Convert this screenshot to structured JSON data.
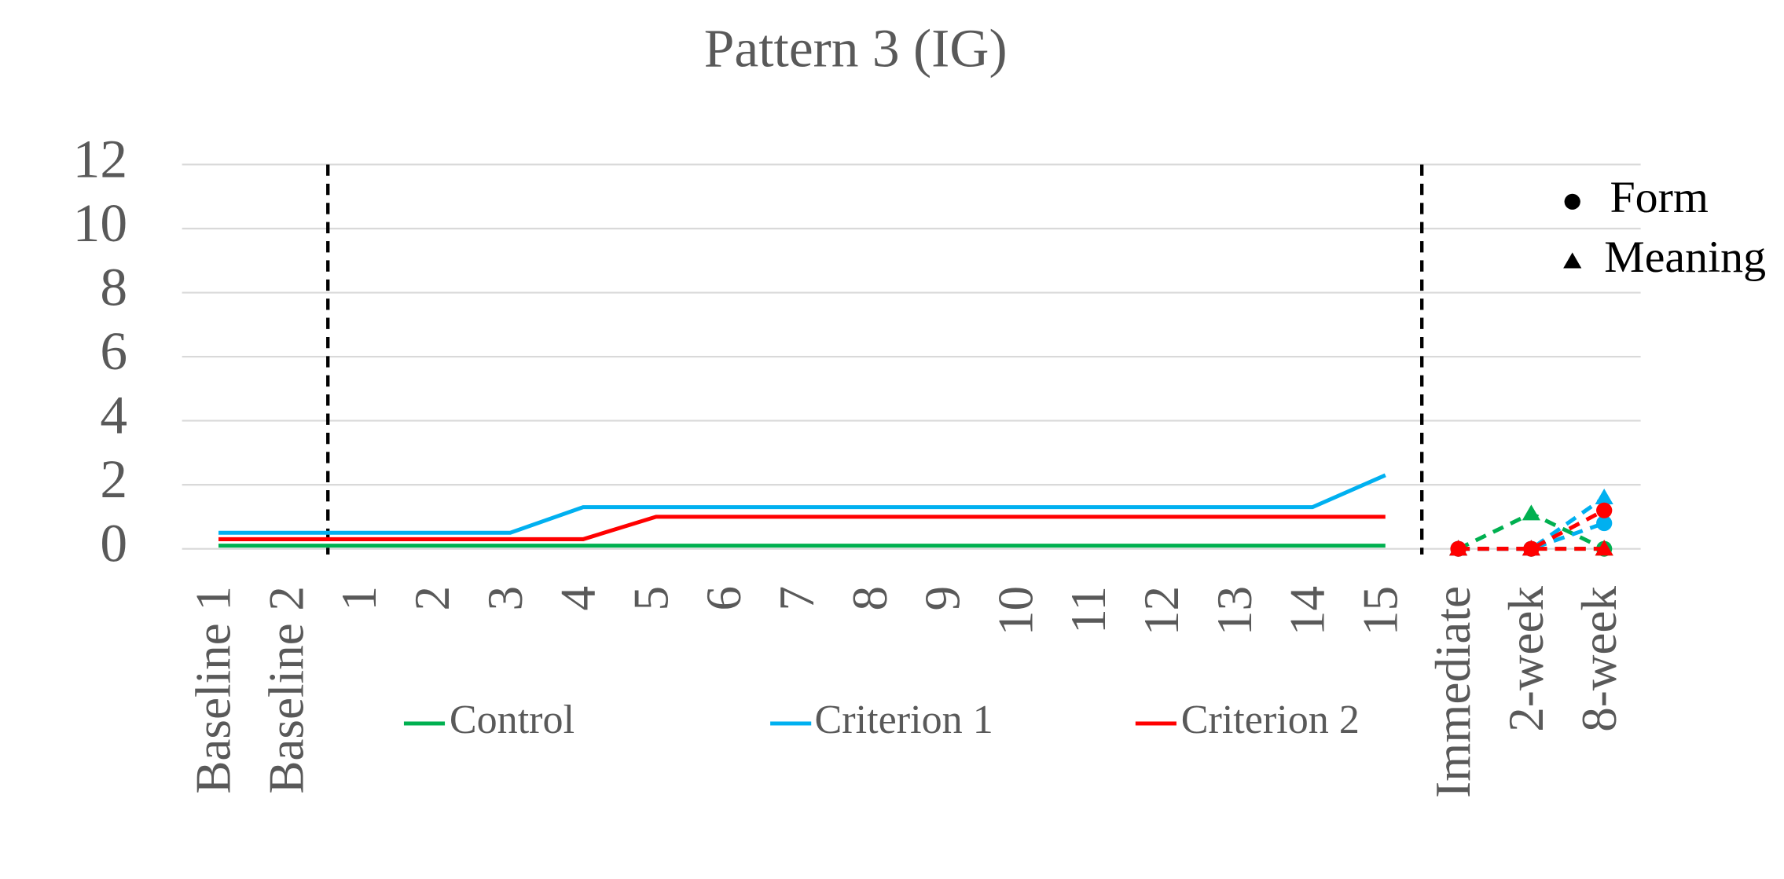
{
  "chart_data": {
    "type": "line",
    "title": "Pattern 3 (IG)",
    "categories": [
      "Baseline 1",
      "Baseline 2",
      "1",
      "2",
      "3",
      "4",
      "5",
      "6",
      "7",
      "8",
      "9",
      "10",
      "11",
      "12",
      "13",
      "14",
      "15",
      "Immediate",
      "2-week",
      "8-week"
    ],
    "phase_breaks": [
      2,
      17
    ],
    "ylim": [
      0,
      12
    ],
    "yticks": [
      0,
      2,
      4,
      6,
      8,
      10,
      12
    ],
    "grid": true,
    "series": [
      {
        "name": "Control",
        "color": "#00b050",
        "values": [
          0.1,
          0.1,
          0.1,
          0.1,
          0.1,
          0.1,
          0.1,
          0.1,
          0.1,
          0.1,
          0.1,
          0.1,
          0.1,
          0.1,
          0.1,
          0.1,
          0.1,
          null,
          null,
          null
        ],
        "form_values": [
          null,
          null,
          null,
          null,
          null,
          null,
          null,
          null,
          null,
          null,
          null,
          null,
          null,
          null,
          null,
          null,
          null,
          0,
          0,
          0
        ],
        "meaning_values": [
          null,
          null,
          null,
          null,
          null,
          null,
          null,
          null,
          null,
          null,
          null,
          null,
          null,
          null,
          null,
          null,
          null,
          0,
          1.1,
          0
        ]
      },
      {
        "name": "Criterion 1",
        "color": "#00b0f0",
        "values": [
          0.5,
          0.5,
          0.5,
          0.5,
          0.5,
          1.3,
          1.3,
          1.3,
          1.3,
          1.3,
          1.3,
          1.3,
          1.3,
          1.3,
          1.3,
          1.3,
          2.3,
          null,
          null,
          null
        ],
        "form_values": [
          null,
          null,
          null,
          null,
          null,
          null,
          null,
          null,
          null,
          null,
          null,
          null,
          null,
          null,
          null,
          null,
          null,
          0,
          0,
          0.8
        ],
        "meaning_values": [
          null,
          null,
          null,
          null,
          null,
          null,
          null,
          null,
          null,
          null,
          null,
          null,
          null,
          null,
          null,
          null,
          null,
          0,
          0,
          1.6
        ]
      },
      {
        "name": "Criterion 2",
        "color": "#ff0000",
        "values": [
          0.3,
          0.3,
          0.3,
          0.3,
          0.3,
          0.3,
          1,
          1,
          1,
          1,
          1,
          1,
          1,
          1,
          1,
          1,
          1,
          null,
          null,
          null
        ],
        "form_values": [
          null,
          null,
          null,
          null,
          null,
          null,
          null,
          null,
          null,
          null,
          null,
          null,
          null,
          null,
          null,
          null,
          null,
          0,
          0,
          1.2
        ],
        "meaning_values": [
          null,
          null,
          null,
          null,
          null,
          null,
          null,
          null,
          null,
          null,
          null,
          null,
          null,
          null,
          null,
          null,
          null,
          0,
          0,
          0
        ]
      }
    ],
    "markers": [
      {
        "name": "Form",
        "symbol": "circle"
      },
      {
        "name": "Meaning",
        "symbol": "triangle"
      }
    ]
  }
}
